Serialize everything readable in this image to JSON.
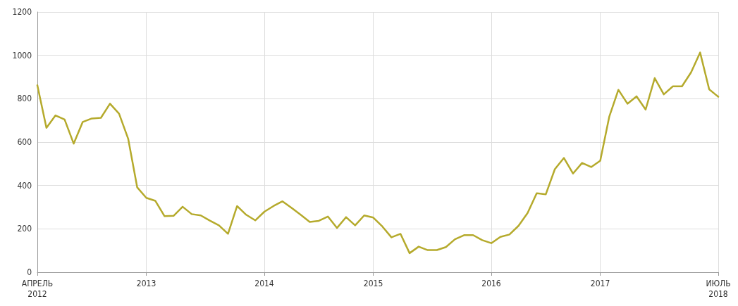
{
  "chart_data": {
    "type": "line",
    "categories": [
      "АПРЕЛЬ\n2012",
      null,
      null,
      null,
      null,
      null,
      null,
      null,
      null,
      null,
      null,
      null,
      "2013",
      null,
      null,
      null,
      null,
      null,
      null,
      null,
      null,
      null,
      null,
      null,
      null,
      "2014",
      null,
      null,
      null,
      null,
      null,
      null,
      null,
      null,
      null,
      null,
      null,
      "2015",
      null,
      null,
      null,
      null,
      null,
      null,
      null,
      null,
      null,
      null,
      null,
      null,
      "2016",
      null,
      null,
      null,
      null,
      null,
      null,
      null,
      null,
      null,
      null,
      null,
      "2017",
      null,
      null,
      null,
      null,
      null,
      null,
      null,
      null,
      null,
      null,
      null,
      null,
      "ИЮЛЬ\n2018"
    ],
    "series": [
      {
        "color": "#b5aa2c",
        "values": [
          862,
          666,
          723,
          704,
          593,
          693,
          709,
          712,
          777,
          731,
          616,
          391,
          343,
          329,
          259,
          260,
          302,
          268,
          262,
          238,
          216,
          177,
          305,
          265,
          239,
          279,
          305,
          327,
          297,
          265,
          232,
          237,
          257,
          204,
          254,
          216,
          262,
          252,
          211,
          161,
          177,
          88,
          118,
          102,
          102,
          116,
          152,
          171,
          171,
          148,
          134,
          163,
          174,
          214,
          273,
          364,
          359,
          475,
          527,
          455,
          504,
          485,
          514,
          718,
          841,
          777,
          811,
          750,
          895,
          820,
          857,
          857,
          921,
          1013,
          843,
          809
        ]
      }
    ],
    "ylim": [
      0,
      1200
    ],
    "yticks": [
      0,
      200,
      400,
      600,
      800,
      1000,
      1200
    ],
    "grid": true,
    "marker": "none",
    "line_style": "solid"
  }
}
